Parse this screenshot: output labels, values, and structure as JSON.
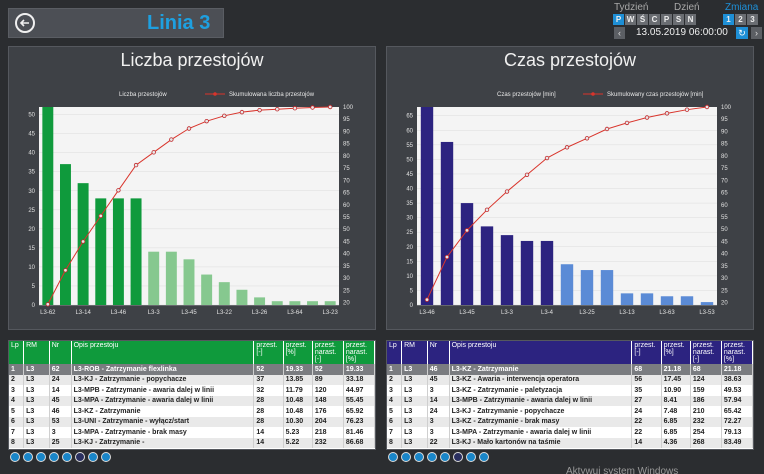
{
  "header": {
    "title": "Linia 3",
    "period_tabs": [
      "Tydzień",
      "Dzień",
      "Zmiana"
    ],
    "days": [
      "P",
      "W",
      "Ś",
      "C",
      "P",
      "S",
      "N"
    ],
    "shifts": [
      "1",
      "2",
      "3"
    ],
    "date": "13.05.2019 06:00:00",
    "colors": {
      "accent": "#1e8fd6",
      "title": "#1ea0e0"
    }
  },
  "left_chart": {
    "title": "Liczba przestojów",
    "legend_bar": "Liczba przestojów",
    "legend_line": "Skumulowana liczba przestojów",
    "bar_color_main": "#0f9a3c",
    "bar_color_rest": "#86c88f",
    "x_labels": [
      "L3-62",
      "L3-14",
      "L3-46",
      "L3-3",
      "L3-45",
      "L3-22",
      "L3-26",
      "L3-64",
      "L3-23"
    ],
    "y_left_ticks": [
      "50",
      "45",
      "40",
      "35",
      "30",
      "25",
      "20",
      "15",
      "10",
      "5",
      "0"
    ],
    "y_right_ticks": [
      "100",
      "95",
      "90",
      "85",
      "80",
      "75",
      "70",
      "65",
      "60",
      "55",
      "50",
      "45",
      "40",
      "35",
      "30",
      "25",
      "20"
    ]
  },
  "right_chart": {
    "title": "Czas przestojów",
    "legend_bar": "Czas przestojów [min]",
    "legend_line": "Skumulowany czas przestojów [min]",
    "bar_color_main": "#2c2380",
    "bar_color_rest": "#5b8bd6",
    "x_labels": [
      "L3-46",
      "L3-45",
      "L3-3",
      "L3-4",
      "L3-25",
      "L3-13",
      "L3-63",
      "L3-53"
    ],
    "y_left_ticks": [
      "65",
      "60",
      "55",
      "50",
      "45",
      "40",
      "35",
      "30",
      "25",
      "20",
      "15",
      "10",
      "5",
      "0"
    ],
    "y_right_ticks": [
      "100",
      "95",
      "90",
      "85",
      "80",
      "75",
      "70",
      "65",
      "60",
      "55",
      "50",
      "45",
      "40",
      "35",
      "30",
      "25",
      "20"
    ]
  },
  "chart_data": [
    {
      "type": "bar",
      "title": "Liczba przestojów",
      "ylim": [
        0,
        52
      ],
      "y2lim": [
        19,
        100
      ],
      "series": [
        {
          "name": "Liczba przestojów",
          "values": [
            52,
            37,
            32,
            28,
            28,
            28,
            14,
            14,
            12,
            8,
            6,
            4,
            2,
            1,
            1,
            1,
            1
          ]
        },
        {
          "name": "Skumulowana liczba przestojów",
          "values": [
            19.3,
            33.2,
            44.97,
            55.45,
            65.92,
            76.23,
            81.46,
            86.68,
            91.2,
            94.2,
            96.4,
            97.9,
            98.7,
            99.1,
            99.5,
            99.8,
            100
          ]
        }
      ]
    },
    {
      "type": "bar",
      "title": "Czas przestojów",
      "ylim": [
        0,
        68
      ],
      "y2lim": [
        19,
        100
      ],
      "series": [
        {
          "name": "Czas przestojów [min]",
          "values": [
            68,
            56,
            35,
            27,
            24,
            22,
            22,
            14,
            12,
            12,
            4,
            4,
            3,
            3,
            1
          ]
        },
        {
          "name": "Skumulowany czas przestojów [min]",
          "values": [
            21.18,
            38.63,
            49.53,
            57.94,
            65.42,
            72.27,
            79.13,
            83.49,
            87.2,
            91.0,
            93.5,
            95.7,
            97.4,
            98.9,
            100
          ]
        }
      ]
    }
  ],
  "left_table": {
    "header_color": "#0f9a3c",
    "columns": [
      "Lp",
      "RM",
      "Nr",
      "Opis przestoju",
      "przest. [-]",
      "przest. [%]",
      "przest. narast. [-]",
      "przest. narast. [%]"
    ],
    "rows": [
      [
        "1",
        "L3",
        "62",
        "L3-ROB - Zatrzymanie flexlinka",
        "52",
        "19.33",
        "52",
        "19.33"
      ],
      [
        "2",
        "L3",
        "24",
        "L3-KJ - Zatrzymanie - popychacze",
        "37",
        "13.85",
        "89",
        "33.18"
      ],
      [
        "3",
        "L3",
        "14",
        "L3-MPB - Zatrzymanie - awaria dalej w linii",
        "32",
        "11.79",
        "120",
        "44.97"
      ],
      [
        "4",
        "L3",
        "45",
        "L3-MPA - Zatrzymanie - awaria dalej w linii",
        "28",
        "10.48",
        "148",
        "55.45"
      ],
      [
        "5",
        "L3",
        "46",
        "L3-KZ - Zatrzymanie",
        "28",
        "10.48",
        "176",
        "65.92"
      ],
      [
        "6",
        "L3",
        "53",
        "L3-UNI - Zatrzymanie - wyłącz/start",
        "28",
        "10.30",
        "204",
        "76.23"
      ],
      [
        "7",
        "L3",
        "3",
        "L3-MPA - Zatrzymanie - brak masy",
        "14",
        "5.23",
        "218",
        "81.46"
      ],
      [
        "8",
        "L3",
        "25",
        "L3-KJ - Zatrzymanie -",
        "14",
        "5.22",
        "232",
        "86.68"
      ]
    ]
  },
  "right_table": {
    "header_color": "#2c2380",
    "columns": [
      "Lp",
      "RM",
      "Nr",
      "Opis przestoju",
      "przest. [-]",
      "przest. [%]",
      "przest. narast. [-]",
      "przest. narast. [%]"
    ],
    "rows": [
      [
        "1",
        "L3",
        "46",
        "L3-KZ - Zatrzymanie",
        "68",
        "21.18",
        "68",
        "21.18"
      ],
      [
        "2",
        "L3",
        "45",
        "L3-KZ - Awaria - interwencja operatora",
        "56",
        "17.45",
        "124",
        "38.63"
      ],
      [
        "3",
        "L3",
        "3",
        "L3-KZ - Zatrzymanie - paletyzacja",
        "35",
        "10.90",
        "159",
        "49.53"
      ],
      [
        "4",
        "L3",
        "14",
        "L3-MPB - Zatrzymanie - awaria dalej w linii",
        "27",
        "8.41",
        "186",
        "57.94"
      ],
      [
        "5",
        "L3",
        "24",
        "L3-KJ - Zatrzymanie - popychacze",
        "24",
        "7.48",
        "210",
        "65.42"
      ],
      [
        "6",
        "L3",
        "3",
        "L3-KZ - Zatrzymanie - brak masy",
        "22",
        "6.85",
        "232",
        "72.27"
      ],
      [
        "7",
        "L3",
        "3",
        "L3-MPA - Zatrzymanie - awaria dalej w linii",
        "22",
        "6.85",
        "254",
        "79.13"
      ],
      [
        "8",
        "L3",
        "22",
        "L3-KJ - Mało kartonów na taśmie",
        "14",
        "4.36",
        "268",
        "83.49"
      ]
    ]
  },
  "footer": {
    "watermark": "Aktywuj system Windows"
  }
}
